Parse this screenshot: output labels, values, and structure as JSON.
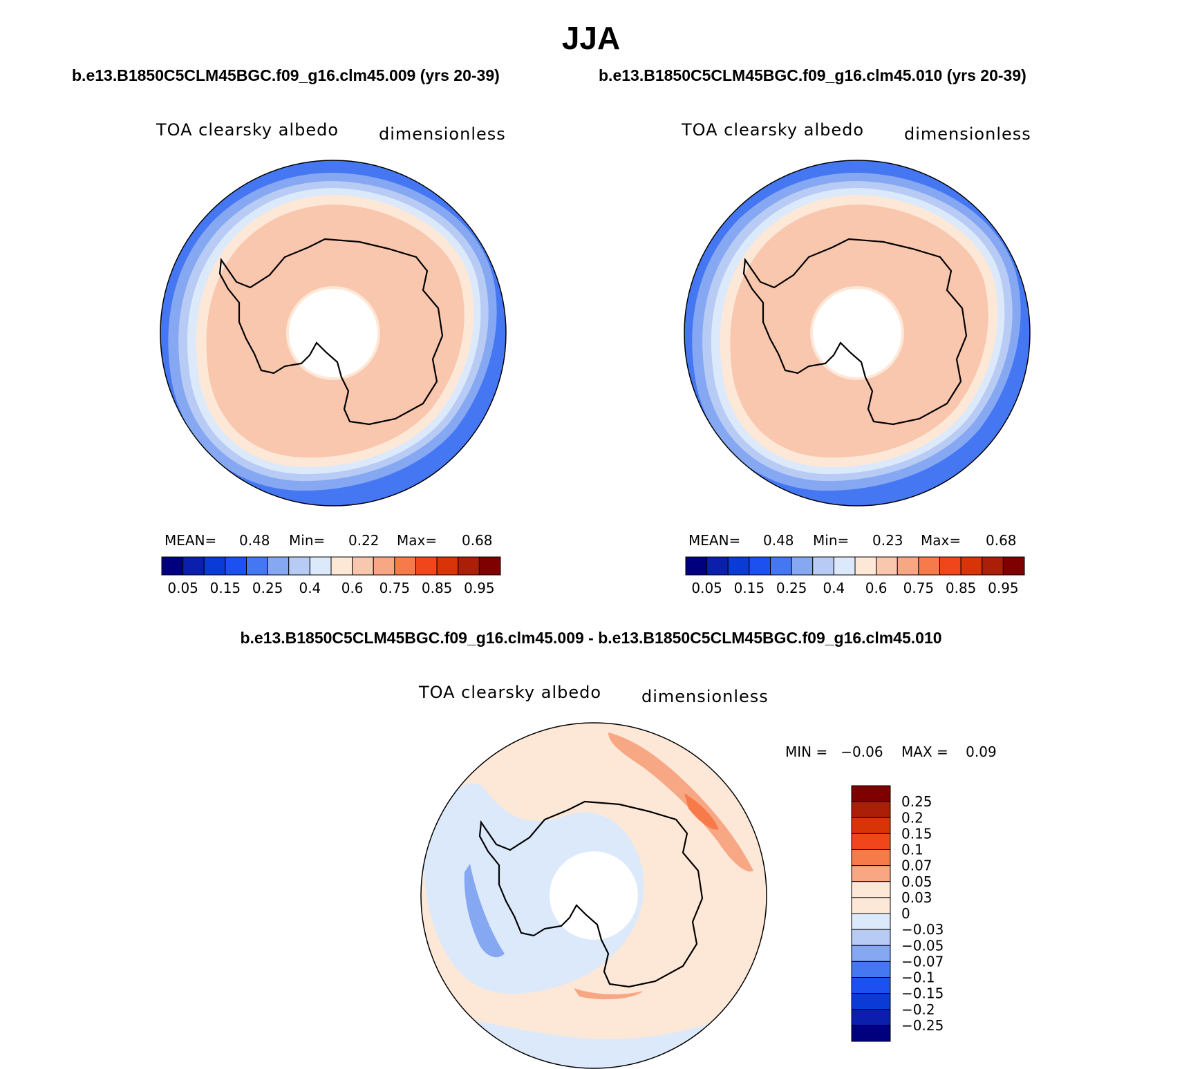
{
  "figure": {
    "season": "JJA",
    "panels": [
      {
        "case_title": "b.e13.B1850C5CLM45BGC.f09_g16.clm45.009 (yrs 20-39)",
        "variable": "TOA clearsky albedo",
        "units": "dimensionless",
        "stats": {
          "mean_label": "MEAN=",
          "mean": "0.48",
          "min_label": "Min=",
          "min": "0.22",
          "max_label": "Max=",
          "max": "0.68"
        }
      },
      {
        "case_title": "b.e13.B1850C5CLM45BGC.f09_g16.clm45.010 (yrs 20-39)",
        "variable": "TOA clearsky albedo",
        "units": "dimensionless",
        "stats": {
          "mean_label": "MEAN=",
          "mean": "0.48",
          "min_label": "Min=",
          "min": "0.23",
          "max_label": "Max=",
          "max": "0.68"
        }
      }
    ],
    "difference": {
      "title": "b.e13.B1850C5CLM45BGC.f09_g16.clm45.009 - b.e13.B1850C5CLM45BGC.f09_g16.clm45.010",
      "variable": "TOA clearsky albedo",
      "units": "dimensionless",
      "min_text": "MIN =   −0.06",
      "max_text": "MAX =    0.09"
    }
  },
  "chart_data": [
    {
      "type": "heatmap",
      "projection": "south polar stereographic",
      "colorbar_levels": [
        0.05,
        0.1,
        0.15,
        0.2,
        0.25,
        0.3,
        0.4,
        0.5,
        0.6,
        0.7,
        0.75,
        0.8,
        0.85,
        0.9,
        0.95
      ],
      "colorbar_tick_labels": [
        "0.05",
        "0.15",
        "0.25",
        "0.4",
        "0.6",
        "0.75",
        "0.85",
        "0.95"
      ],
      "colorbar_colors": [
        "#00007f",
        "#0a1fab",
        "#0b3bd6",
        "#1d50f0",
        "#4577f2",
        "#86a8f2",
        "#b7cbf4",
        "#dbe9fb",
        "#fde8d8",
        "#f9c6ae",
        "#f7a784",
        "#f77a4a",
        "#f1461b",
        "#d93408",
        "#ab1e08",
        "#7f0000"
      ],
      "stats": {
        "mean": 0.48,
        "min": 0.22,
        "max": 0.68
      }
    },
    {
      "type": "heatmap",
      "projection": "south polar stereographic",
      "colorbar_levels": [
        0.05,
        0.1,
        0.15,
        0.2,
        0.25,
        0.3,
        0.4,
        0.5,
        0.6,
        0.7,
        0.75,
        0.8,
        0.85,
        0.9,
        0.95
      ],
      "colorbar_tick_labels": [
        "0.05",
        "0.15",
        "0.25",
        "0.4",
        "0.6",
        "0.75",
        "0.85",
        "0.95"
      ],
      "colorbar_colors": [
        "#00007f",
        "#0a1fab",
        "#0b3bd6",
        "#1d50f0",
        "#4577f2",
        "#86a8f2",
        "#b7cbf4",
        "#dbe9fb",
        "#fde8d8",
        "#f9c6ae",
        "#f7a784",
        "#f77a4a",
        "#f1461b",
        "#d93408",
        "#ab1e08",
        "#7f0000"
      ],
      "stats": {
        "mean": 0.48,
        "min": 0.23,
        "max": 0.68
      }
    },
    {
      "type": "heatmap",
      "projection": "south polar stereographic",
      "colorbar_levels": [
        -0.25,
        -0.2,
        -0.15,
        -0.1,
        -0.07,
        -0.05,
        -0.03,
        0,
        0.03,
        0.05,
        0.07,
        0.1,
        0.15,
        0.2,
        0.25
      ],
      "colorbar_tick_labels": [
        "0.25",
        "0.2",
        "0.15",
        "0.1",
        "0.07",
        "0.05",
        "0.03",
        "0",
        "−0.03",
        "−0.05",
        "−0.07",
        "−0.1",
        "−0.15",
        "−0.2",
        "−0.25"
      ],
      "colorbar_colors": [
        "#7f0000",
        "#ab1e08",
        "#d93408",
        "#f1461b",
        "#f77a4a",
        "#f7a784",
        "#fde8d8",
        "#fde8d8",
        "#dbe9fb",
        "#b7cbf4",
        "#86a8f2",
        "#4577f2",
        "#1d50f0",
        "#0b3bd6",
        "#0a1fab",
        "#00007f"
      ],
      "stats": {
        "min": -0.06,
        "max": 0.09
      }
    }
  ]
}
